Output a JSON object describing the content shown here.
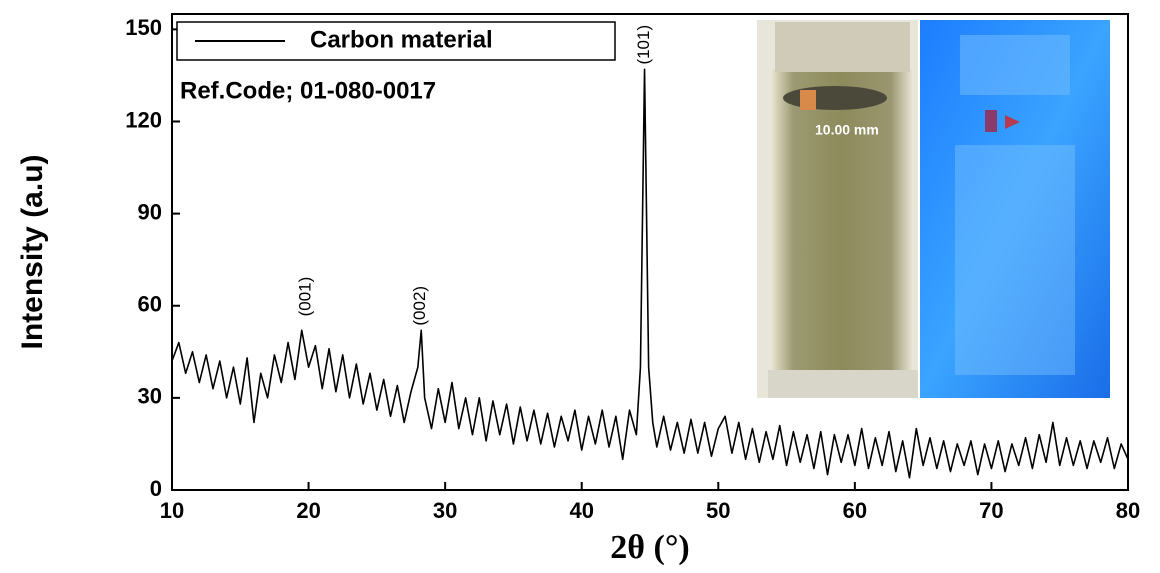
{
  "chart_data": {
    "type": "line",
    "xlabel": "2θ (°)",
    "ylabel": "Intensity (a.u)",
    "annotations": [
      "Ref.Code; 01-080-0017",
      "(001)",
      "(002)",
      "(101)",
      "10.00 mm"
    ],
    "xlim": [
      10,
      80
    ],
    "ylim": [
      0,
      155
    ],
    "xticks": [
      10,
      20,
      30,
      40,
      50,
      60,
      70,
      80
    ],
    "yticks": [
      0,
      30,
      60,
      90,
      120,
      150
    ],
    "legend": "upper left",
    "x": [
      10,
      10.5,
      11,
      11.5,
      12,
      12.5,
      13,
      13.5,
      14,
      14.5,
      15,
      15.5,
      16,
      16.5,
      17,
      17.5,
      18,
      18.5,
      19,
      19.5,
      20,
      20.5,
      21,
      21.5,
      22,
      22.5,
      23,
      23.5,
      24,
      24.5,
      25,
      25.5,
      26,
      26.5,
      27,
      27.5,
      28,
      28.25,
      28.5,
      29,
      29.5,
      30,
      30.5,
      31,
      31.5,
      32,
      32.5,
      33,
      33.5,
      34,
      34.5,
      35,
      35.5,
      36,
      36.5,
      37,
      37.5,
      38,
      38.5,
      39,
      39.5,
      40,
      40.5,
      41,
      41.5,
      42,
      42.5,
      43,
      43.5,
      44,
      44.3,
      44.6,
      44.9,
      45.2,
      45.5,
      46,
      46.5,
      47,
      47.5,
      48,
      48.5,
      49,
      49.5,
      50,
      50.5,
      51,
      51.5,
      52,
      52.5,
      53,
      53.5,
      54,
      54.5,
      55,
      55.5,
      56,
      56.5,
      57,
      57.5,
      58,
      58.5,
      59,
      59.5,
      60,
      60.5,
      61,
      61.5,
      62,
      62.5,
      63,
      63.5,
      64,
      64.5,
      65,
      65.5,
      66,
      66.5,
      67,
      67.5,
      68,
      68.5,
      69,
      69.5,
      70,
      70.5,
      71,
      71.5,
      72,
      72.5,
      73,
      73.5,
      74,
      74.5,
      75,
      75.5,
      76,
      76.5,
      77,
      77.5,
      78,
      78.5,
      79,
      79.5,
      80
    ],
    "series": [
      {
        "name": "Carbon material",
        "color": "#000000",
        "values": [
          42,
          48,
          38,
          45,
          35,
          44,
          33,
          42,
          30,
          40,
          28,
          43,
          22,
          38,
          30,
          44,
          35,
          48,
          36,
          52,
          40,
          47,
          33,
          46,
          32,
          44,
          30,
          41,
          28,
          38,
          26,
          36,
          24,
          34,
          22,
          32,
          40,
          52,
          30,
          20,
          33,
          22,
          35,
          20,
          30,
          18,
          30,
          16,
          29,
          18,
          28,
          15,
          27,
          16,
          26,
          15,
          25,
          14,
          24,
          16,
          26,
          13,
          24,
          15,
          26,
          14,
          24,
          10,
          26,
          18,
          40,
          137,
          40,
          22,
          14,
          24,
          13,
          22,
          12,
          23,
          12,
          22,
          11,
          20,
          24,
          12,
          22,
          10,
          20,
          9,
          19,
          10,
          21,
          8,
          19,
          9,
          18,
          7,
          19,
          5,
          18,
          9,
          18,
          8,
          20,
          7,
          17,
          8,
          19,
          6,
          16,
          4,
          20,
          8,
          17,
          7,
          16,
          6,
          15,
          8,
          16,
          5,
          15,
          7,
          16,
          6,
          15,
          8,
          17,
          7,
          18,
          9,
          22,
          8,
          17,
          8,
          16,
          7,
          16,
          9,
          17,
          7,
          15,
          10
        ]
      }
    ]
  }
}
